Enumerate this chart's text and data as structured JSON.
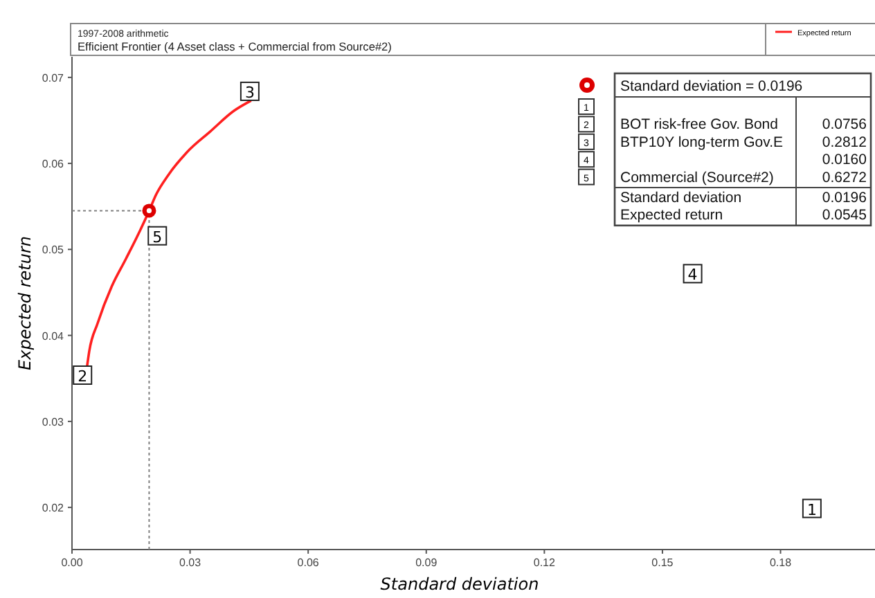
{
  "chart_data": {
    "type": "line",
    "title": "Efficient Frontier (4 Asset class + Commercial from Source#2)",
    "subtitle": "1997-2008 arithmetic",
    "xlabel": "Standard deviation",
    "ylabel": "Expected return",
    "xlim": [
      0,
      0.204
    ],
    "xticks": [
      {
        "value": 0,
        "label": "0.00"
      },
      0.03,
      0.06,
      0.09,
      0.12,
      0.15,
      0.18
    ],
    "ylim": [
      0.0151,
      0.0724
    ],
    "yticks": [
      0.02,
      0.03,
      0.04,
      0.05,
      0.06,
      0.07
    ],
    "legend": "top right",
    "grid": false,
    "series": [
      {
        "name": "Expected return",
        "type": "line",
        "color": "#ff2020",
        "marker": "none",
        "x": [
          0.0038,
          0.0044,
          0.0065,
          0.0101,
          0.0137,
          0.0173,
          0.0196,
          0.0214,
          0.0244,
          0.0292,
          0.0351,
          0.0411,
          0.0455
        ],
        "values": [
          0.0363,
          0.0382,
          0.0414,
          0.0457,
          0.0489,
          0.0522,
          0.0545,
          0.0564,
          0.0586,
          0.0613,
          0.0637,
          0.0661,
          0.0673
        ]
      },
      {
        "name": "Standard deviation = 0.0196",
        "type": "scatter",
        "color": "#dd0000",
        "marker": "circle",
        "x": [
          0.0196
        ],
        "values": [
          0.0545
        ]
      }
    ],
    "ref_lines": [
      {
        "axis": "x",
        "value": 0.0196,
        "color": "#808080",
        "line_style": "dotted"
      },
      {
        "axis": "y",
        "value": 0.0545,
        "color": "#808080",
        "line_style": "dotted"
      }
    ],
    "annotations": [
      {
        "text": "1",
        "x": 0.1878,
        "y": 0.0198
      },
      {
        "text": "2",
        "x": 0.0025,
        "y": 0.0353
      },
      {
        "text": "3",
        "x": 0.045,
        "y": 0.0683
      },
      {
        "text": "4",
        "x": 0.1575,
        "y": 0.0471
      },
      {
        "text": "5",
        "x": 0.0215,
        "y": 0.0515
      },
      "1",
      "2",
      "BOT risk-free Gov. Bond",
      "0.0756",
      "3",
      "BTP10Y long-term Gov.E",
      "0.2812",
      "4",
      "0.0160",
      "5",
      "Commercial (Source#2)",
      "0.6272",
      "Standard deviation",
      "0.0196",
      "Expected return",
      "0.0545"
    ]
  }
}
